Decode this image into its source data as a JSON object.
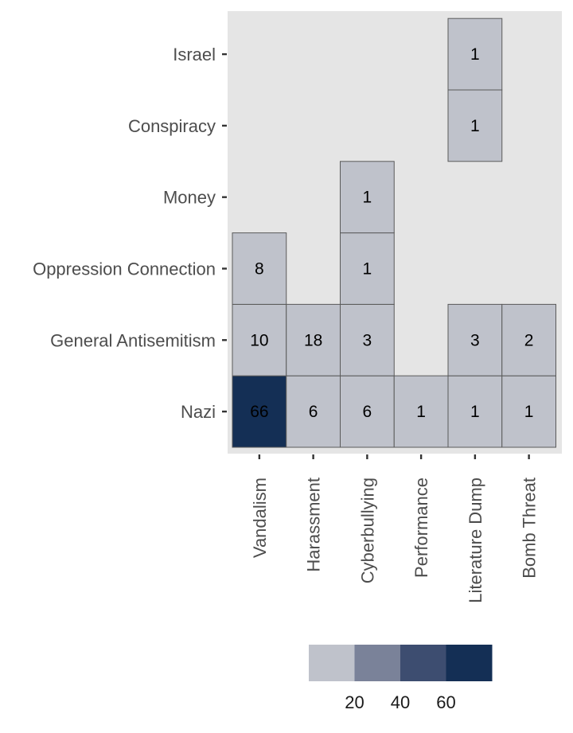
{
  "chart_data": {
    "type": "heatmap",
    "title": "",
    "xlabel": "",
    "ylabel": "",
    "x_categories": [
      "Vandalism",
      "Harassment",
      "Cyberbullying",
      "Performance",
      "Literature Dump",
      "Bomb Threat"
    ],
    "y_categories": [
      "Nazi",
      "General Antisemitism",
      "Oppression Connection",
      "Money",
      "Conspiracy",
      "Israel"
    ],
    "cells": [
      {
        "x": "Vandalism",
        "y": "Nazi",
        "value": 66
      },
      {
        "x": "Harassment",
        "y": "Nazi",
        "value": 6
      },
      {
        "x": "Cyberbullying",
        "y": "Nazi",
        "value": 6
      },
      {
        "x": "Performance",
        "y": "Nazi",
        "value": 1
      },
      {
        "x": "Literature Dump",
        "y": "Nazi",
        "value": 1
      },
      {
        "x": "Bomb Threat",
        "y": "Nazi",
        "value": 1
      },
      {
        "x": "Vandalism",
        "y": "General Antisemitism",
        "value": 10
      },
      {
        "x": "Harassment",
        "y": "General Antisemitism",
        "value": 18
      },
      {
        "x": "Cyberbullying",
        "y": "General Antisemitism",
        "value": 3
      },
      {
        "x": "Literature Dump",
        "y": "General Antisemitism",
        "value": 3
      },
      {
        "x": "Bomb Threat",
        "y": "General Antisemitism",
        "value": 2
      },
      {
        "x": "Vandalism",
        "y": "Oppression Connection",
        "value": 8
      },
      {
        "x": "Cyberbullying",
        "y": "Oppression Connection",
        "value": 1
      },
      {
        "x": "Cyberbullying",
        "y": "Money",
        "value": 1
      },
      {
        "x": "Literature Dump",
        "y": "Conspiracy",
        "value": 1
      },
      {
        "x": "Literature Dump",
        "y": "Israel",
        "value": 1
      }
    ],
    "legend": {
      "placement": "bottom",
      "type": "binned",
      "bins": [
        {
          "max": 20,
          "color": "#bfc2cb"
        },
        {
          "max": 40,
          "color": "#7a8299"
        },
        {
          "max": 60,
          "color": "#3d4d70"
        },
        {
          "max": 80,
          "color": "#142f55"
        }
      ],
      "ticks": [
        20,
        40,
        60
      ]
    },
    "panel_background": "#e5e5e5",
    "cell_border": "#5a5a5a",
    "grid": false
  }
}
